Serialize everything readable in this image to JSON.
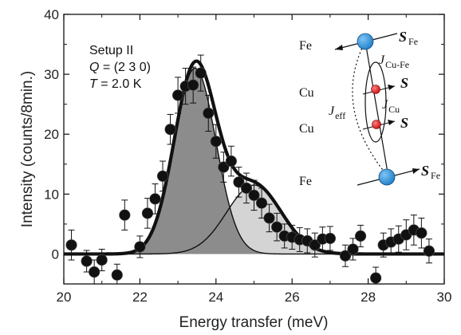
{
  "chart_data": {
    "type": "scatter",
    "title": "",
    "xlabel": "Energy transfer (meV)",
    "ylabel": "Intensity (counts/8min.)",
    "xlim": [
      20,
      30
    ],
    "ylim": [
      -5,
      40
    ],
    "xticks": [
      20,
      22,
      24,
      26,
      28,
      30
    ],
    "yticks": [
      0,
      10,
      20,
      30,
      40
    ],
    "grid": false,
    "annotations": {
      "setup": "Setup II",
      "q_label": "Q",
      "q_value": " = (2 3 0)",
      "t_label": "T",
      "t_value": " = 2.0 K"
    },
    "inset": {
      "atoms": [
        "Fe",
        "Cu",
        "Cu",
        "Fe"
      ],
      "spin_symbol": "S",
      "spin_fe_sub": "Fe",
      "j_symbol": "J",
      "j_cufe_sub": "Cu-Fe",
      "j_eff_sub": "eff",
      "j_cu_sub": "Cu",
      "colors": {
        "fe": "#2a8fd8",
        "cu": "#e01818"
      }
    },
    "series": [
      {
        "kind": "data-points",
        "x": [
          20.2,
          20.6,
          20.8,
          21.0,
          21.4,
          21.6,
          22.0,
          22.2,
          22.4,
          22.6,
          22.8,
          23.0,
          23.2,
          23.4,
          23.6,
          23.8,
          24.0,
          24.2,
          24.4,
          24.6,
          24.8,
          25.0,
          25.2,
          25.4,
          25.6,
          25.8,
          26.0,
          26.2,
          26.4,
          26.6,
          26.8,
          27.0,
          27.4,
          27.6,
          27.8,
          28.2,
          28.4,
          28.6,
          28.8,
          29.0,
          29.2,
          29.4,
          29.6
        ],
        "y": [
          1.5,
          -1.2,
          -3.0,
          -1.0,
          -3.5,
          6.5,
          1.2,
          6.8,
          9.2,
          13.0,
          20.8,
          26.5,
          28.0,
          28.2,
          30.2,
          23.5,
          18.8,
          14.5,
          15.5,
          12.0,
          11.0,
          9.8,
          8.5,
          6.0,
          4.5,
          3.0,
          2.8,
          2.4,
          2.2,
          1.5,
          2.5,
          2.6,
          -0.3,
          0.8,
          3.0,
          -4.0,
          1.5,
          2.0,
          2.5,
          3.2,
          4.0,
          3.5,
          0.5
        ],
        "yerr": [
          2.5,
          1.8,
          2.0,
          1.8,
          1.8,
          2.5,
          1.8,
          2.5,
          2.5,
          2.5,
          2.5,
          3.0,
          3.0,
          3.0,
          3.0,
          3.0,
          2.8,
          2.5,
          2.5,
          2.5,
          2.5,
          2.5,
          2.5,
          2.3,
          2.3,
          2.0,
          2.0,
          2.0,
          2.0,
          2.0,
          2.0,
          2.0,
          1.8,
          1.8,
          1.8,
          1.8,
          2.0,
          2.2,
          2.2,
          2.5,
          2.5,
          2.5,
          2.0
        ]
      },
      {
        "kind": "peak",
        "center": 23.45,
        "amplitude": 31.0,
        "sigma": 0.55,
        "fill": "#8c8c8c"
      },
      {
        "kind": "peak",
        "center": 25.0,
        "amplitude": 11.5,
        "sigma": 0.72,
        "fill": "#d4d4d4"
      }
    ]
  }
}
